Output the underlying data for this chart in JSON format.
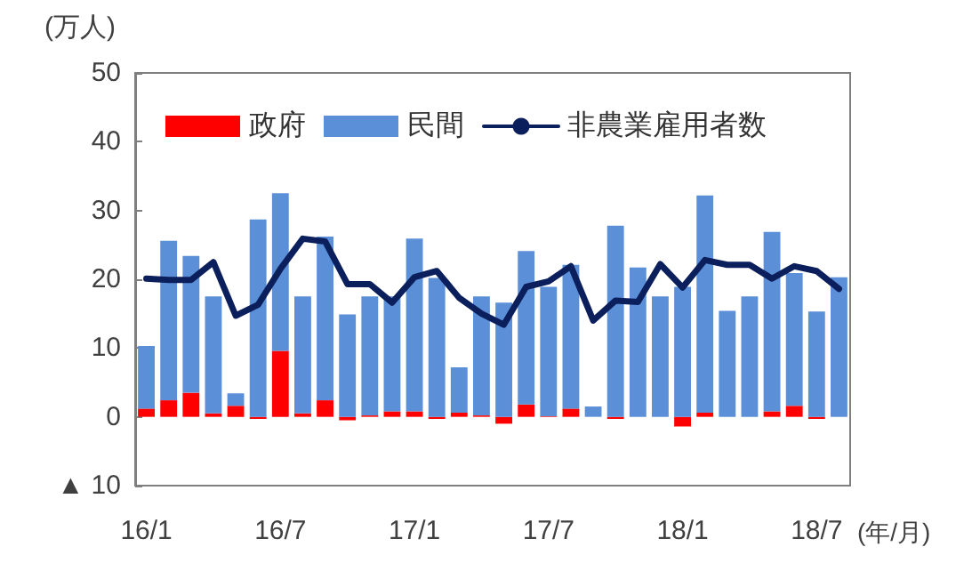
{
  "chart_data": {
    "type": "bar",
    "ylabel": "(万人)",
    "xlabel": "(年/月)",
    "categories": [
      "16/1",
      null,
      null,
      null,
      null,
      null,
      "16/7",
      null,
      null,
      null,
      null,
      null,
      "17/1",
      null,
      null,
      null,
      null,
      null,
      "17/7",
      null,
      null,
      null,
      null,
      null,
      "18/1",
      null,
      null,
      null,
      null,
      null,
      "18/7",
      null
    ],
    "series": [
      {
        "name": "政府",
        "color": "#ff0000",
        "values": [
          1.2,
          2.4,
          3.5,
          0.5,
          1.6,
          -0.3,
          9.6,
          0.5,
          2.4,
          -0.5,
          0.2,
          0.8,
          0.8,
          -0.3,
          0.6,
          0.2,
          -1.0,
          1.8,
          0.1,
          1.2,
          0,
          -0.3,
          0,
          0,
          -1.4,
          0.6,
          0,
          0,
          0.8,
          1.6,
          -0.3,
          0
        ]
      },
      {
        "name": "民間",
        "color": "#5b8fd8",
        "values": [
          9.1,
          23.2,
          19.9,
          17.0,
          1.8,
          28.7,
          22.9,
          17.0,
          23.8,
          14.9,
          17.3,
          16.7,
          25.1,
          20.2,
          6.6,
          17.3,
          16.6,
          22.3,
          18.8,
          20.9,
          1.5,
          27.8,
          21.7,
          17.5,
          18.9,
          31.6,
          15.4,
          17.5,
          26.1,
          19.3,
          15.3,
          20.3
        ]
      },
      {
        "name": "非農業雇用者数",
        "type": "line",
        "color": "#0b1f5c",
        "values": [
          20.1,
          19.9,
          19.9,
          22.5,
          14.7,
          16.3,
          21.5,
          25.9,
          25.5,
          19.3,
          19.3,
          16.6,
          20.3,
          21.2,
          17.3,
          15.0,
          13.4,
          18.9,
          19.7,
          21.9,
          14.0,
          16.9,
          16.7,
          22.2,
          18.8,
          22.8,
          22.1,
          22.1,
          20.1,
          21.9,
          21.2,
          18.6
        ]
      }
    ],
    "ylim": [
      -10,
      50
    ],
    "yticks": [
      {
        "value": -10,
        "label": "▲ 10"
      },
      0,
      10,
      20,
      30,
      40,
      50
    ],
    "stacked": true,
    "grid": false,
    "legend": "top",
    "marker": "none",
    "line_style": "solid"
  }
}
